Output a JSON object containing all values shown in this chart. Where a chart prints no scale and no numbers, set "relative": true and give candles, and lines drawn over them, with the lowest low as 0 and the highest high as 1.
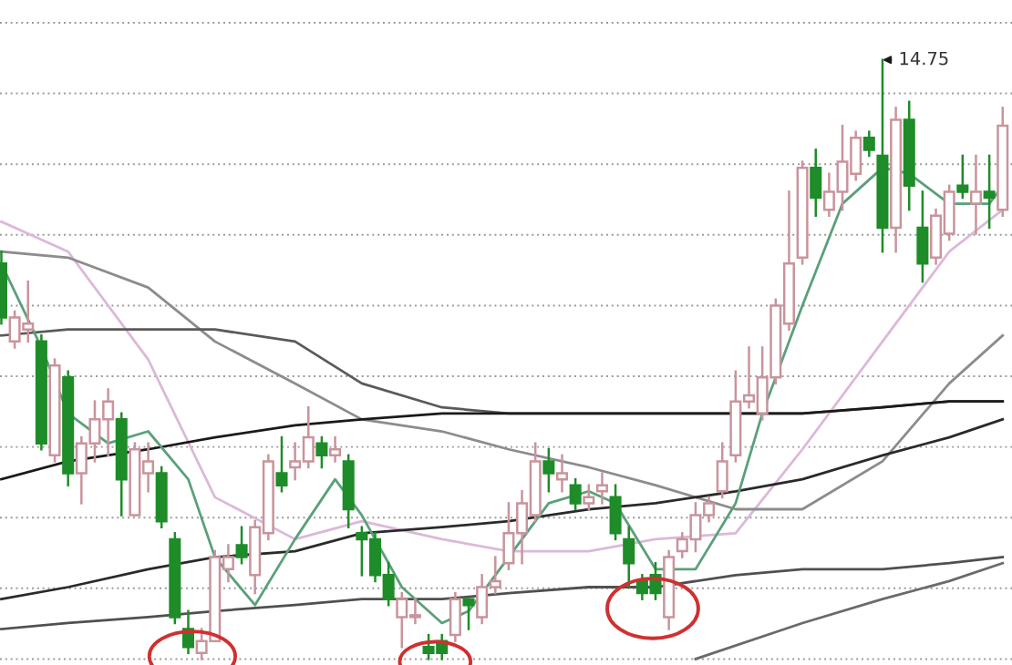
{
  "chart_data": {
    "type": "candlestick",
    "relative": true,
    "grid": "y",
    "categories": [
      null,
      null,
      null,
      null,
      null,
      null,
      null,
      null,
      null,
      null,
      null,
      null,
      null,
      null,
      null,
      null,
      null,
      null,
      null,
      null,
      null,
      null,
      null,
      null,
      null,
      null,
      null,
      null,
      null,
      null,
      null,
      null,
      null,
      null,
      null,
      null,
      null,
      null,
      null,
      null,
      null,
      null,
      null,
      null,
      null,
      null,
      null,
      null,
      null,
      null,
      null,
      null,
      null,
      null,
      null,
      null,
      null,
      null,
      null,
      null,
      null,
      null,
      null,
      null,
      null,
      null,
      null,
      null,
      null,
      null,
      null,
      null,
      null,
      null,
      null,
      null
    ],
    "ohlc": [
      [
        0.66,
        0.68,
        0.56,
        0.57
      ],
      [
        0.53,
        0.58,
        0.52,
        0.57
      ],
      [
        0.55,
        0.63,
        0.53,
        0.56
      ],
      [
        0.53,
        0.54,
        0.35,
        0.36
      ],
      [
        0.34,
        0.5,
        0.33,
        0.49
      ],
      [
        0.47,
        0.48,
        0.29,
        0.31
      ],
      [
        0.31,
        0.37,
        0.26,
        0.36
      ],
      [
        0.36,
        0.43,
        0.33,
        0.4
      ],
      [
        0.4,
        0.45,
        0.34,
        0.43
      ],
      [
        0.4,
        0.41,
        0.24,
        0.3
      ],
      [
        0.24,
        0.36,
        0.24,
        0.35
      ],
      [
        0.31,
        0.36,
        0.28,
        0.33
      ],
      [
        0.31,
        0.32,
        0.22,
        0.23
      ],
      [
        0.2,
        0.21,
        0.06,
        0.07
      ],
      [
        0.05,
        0.08,
        0.01,
        0.02
      ],
      [
        0.01,
        0.05,
        0,
        0.03
      ],
      [
        0.03,
        0.18,
        0.03,
        0.17
      ],
      [
        0.15,
        0.19,
        0.13,
        0.17
      ],
      [
        0.19,
        0.22,
        0.16,
        0.17
      ],
      [
        0.14,
        0.23,
        0.11,
        0.22
      ],
      [
        0.21,
        0.34,
        0.2,
        0.33
      ],
      [
        0.31,
        0.37,
        0.28,
        0.29
      ],
      [
        0.32,
        0.36,
        0.3,
        0.33
      ],
      [
        0.33,
        0.42,
        0.32,
        0.37
      ],
      [
        0.36,
        0.37,
        0.32,
        0.34
      ],
      [
        0.34,
        0.37,
        0.33,
        0.35
      ],
      [
        0.33,
        0.34,
        0.22,
        0.25
      ],
      [
        0.21,
        0.22,
        0.14,
        0.2
      ],
      [
        0.2,
        0.21,
        0.13,
        0.14
      ],
      [
        0.14,
        0.16,
        0.09,
        0.1
      ],
      [
        0.07,
        0.11,
        0.02,
        0.1
      ],
      [
        0.07,
        0.1,
        0.06,
        0.07
      ],
      [
        0.02,
        0.04,
        0,
        0.01
      ],
      [
        0.03,
        0.04,
        0,
        0.01
      ],
      [
        0.04,
        0.11,
        0.03,
        0.1
      ],
      [
        0.1,
        0.1,
        0.05,
        0.09
      ],
      [
        0.07,
        0.14,
        0.06,
        0.12
      ],
      [
        0.12,
        0.17,
        0.11,
        0.13
      ],
      [
        0.16,
        0.26,
        0.15,
        0.21
      ],
      [
        0.21,
        0.28,
        0.16,
        0.26
      ],
      [
        0.24,
        0.36,
        0.23,
        0.33
      ],
      [
        0.33,
        0.35,
        0.28,
        0.31
      ],
      [
        0.3,
        0.34,
        0.28,
        0.31
      ],
      [
        0.29,
        0.3,
        0.25,
        0.26
      ],
      [
        0.26,
        0.29,
        0.25,
        0.27
      ],
      [
        0.28,
        0.31,
        0.26,
        0.29
      ],
      [
        0.27,
        0.29,
        0.2,
        0.21
      ],
      [
        0.2,
        0.22,
        0.12,
        0.16
      ],
      [
        0.13,
        0.14,
        0.1,
        0.11
      ],
      [
        0.14,
        0.16,
        0.1,
        0.11
      ],
      [
        0.07,
        0.18,
        0.05,
        0.17
      ],
      [
        0.18,
        0.21,
        0.17,
        0.2
      ],
      [
        0.2,
        0.26,
        0.18,
        0.24
      ],
      [
        0.24,
        0.27,
        0.23,
        0.26
      ],
      [
        0.28,
        0.36,
        0.27,
        0.33
      ],
      [
        0.34,
        0.48,
        0.33,
        0.43
      ],
      [
        0.43,
        0.52,
        0.42,
        0.44
      ],
      [
        0.41,
        0.52,
        0.4,
        0.47
      ],
      [
        0.47,
        0.6,
        0.46,
        0.59
      ],
      [
        0.56,
        0.78,
        0.55,
        0.66
      ],
      [
        0.67,
        0.83,
        0.66,
        0.82
      ],
      [
        0.82,
        0.85,
        0.74,
        0.77
      ],
      [
        0.75,
        0.81,
        0.74,
        0.78
      ],
      [
        0.78,
        0.89,
        0.75,
        0.83
      ],
      [
        0.81,
        0.88,
        0.8,
        0.87
      ],
      [
        0.87,
        0.88,
        0.84,
        0.85
      ],
      [
        0.84,
        1,
        0.68,
        0.72
      ],
      [
        0.72,
        0.92,
        0.68,
        0.9
      ],
      [
        0.9,
        0.93,
        0.75,
        0.79
      ],
      [
        0.72,
        0.78,
        0.63,
        0.66
      ],
      [
        0.67,
        0.75,
        0.66,
        0.74
      ],
      [
        0.71,
        0.79,
        0.7,
        0.78
      ],
      [
        0.79,
        0.84,
        0.77,
        0.78
      ],
      [
        0.76,
        0.84,
        0.71,
        0.78
      ],
      [
        0.78,
        0.84,
        0.72,
        0.77
      ],
      [
        0.75,
        0.92,
        0.74,
        0.89
      ]
    ],
    "colors": [
      "#1e8c28",
      "#c8949c",
      "#c8949c",
      "#1e8c28",
      "#c8949c",
      "#1e8c28",
      "#c8949c",
      "#c8949c",
      "#c8949c",
      "#1e8c28",
      "#c8949c",
      "#c8949c",
      "#1e8c28",
      "#1e8c28",
      "#1e8c28",
      "#c8949c",
      "#c8949c",
      "#c8949c",
      "#1e8c28",
      "#c8949c",
      "#c8949c",
      "#1e8c28",
      "#c8949c",
      "#c8949c",
      "#1e8c28",
      "#c8949c",
      "#1e8c28",
      "#1e8c28",
      "#1e8c28",
      "#1e8c28",
      "#c8949c",
      "#c8949c",
      "#1e8c28",
      "#1e8c28",
      "#c8949c",
      "#1e8c28",
      "#c8949c",
      "#c8949c",
      "#c8949c",
      "#c8949c",
      "#c8949c",
      "#1e8c28",
      "#c8949c",
      "#1e8c28",
      "#c8949c",
      "#c8949c",
      "#1e8c28",
      "#1e8c28",
      "#1e8c28",
      "#1e8c28",
      "#c8949c",
      "#c8949c",
      "#c8949c",
      "#c8949c",
      "#c8949c",
      "#c8949c",
      "#c8949c",
      "#c8949c",
      "#c8949c",
      "#c8949c",
      "#c8949c",
      "#1e8c28",
      "#c8949c",
      "#c8949c",
      "#c8949c",
      "#1e8c28",
      "#1e8c28",
      "#c8949c",
      "#1e8c28",
      "#1e8c28",
      "#c8949c",
      "#c8949c",
      "#1e8c28",
      "#c8949c",
      "#1e8c28",
      "#c8949c"
    ],
    "series": [
      {
        "type": "line",
        "color": "#dcb8d8",
        "values": [
          0.73,
          null,
          null,
          null,
          null,
          0.68,
          null,
          null,
          null,
          null,
          null,
          0.5,
          null,
          null,
          null,
          null,
          0.27,
          null,
          null,
          null,
          null,
          null,
          0.2,
          null,
          null,
          null,
          null,
          0.23,
          null,
          null,
          null,
          null,
          null,
          0.2,
          null,
          null,
          null,
          null,
          0.18,
          null,
          null,
          null,
          null,
          null,
          0.18,
          null,
          null,
          null,
          null,
          0.2,
          null,
          null,
          null,
          null,
          null,
          0.21,
          null,
          null,
          null,
          null,
          0.35,
          null,
          null,
          null,
          null,
          null,
          0.53,
          null,
          null,
          null,
          null,
          0.68,
          null,
          null,
          null,
          0.75
        ]
      },
      {
        "type": "line",
        "color": "#8c8c8c",
        "values": [
          0.68,
          null,
          null,
          null,
          null,
          0.67,
          null,
          null,
          null,
          null,
          null,
          0.62,
          null,
          null,
          null,
          null,
          0.53,
          null,
          null,
          null,
          null,
          null,
          0.46,
          null,
          null,
          null,
          null,
          0.4,
          null,
          null,
          null,
          null,
          null,
          0.38,
          null,
          null,
          null,
          null,
          0.35,
          null,
          null,
          null,
          null,
          null,
          0.32,
          null,
          null,
          null,
          null,
          0.29,
          null,
          null,
          null,
          null,
          null,
          0.25,
          null,
          null,
          null,
          null,
          0.25,
          null,
          null,
          null,
          null,
          null,
          0.33,
          null,
          null,
          null,
          null,
          0.46,
          null,
          null,
          null,
          0.54
        ]
      },
      {
        "type": "line",
        "color": "#5a5a5a",
        "values": [
          0.54,
          null,
          null,
          null,
          null,
          0.55,
          null,
          null,
          null,
          null,
          null,
          0.55,
          null,
          null,
          null,
          null,
          0.55,
          null,
          null,
          null,
          null,
          null,
          0.53,
          null,
          null,
          null,
          null,
          0.46,
          null,
          null,
          null,
          null,
          null,
          0.42,
          null,
          null,
          null,
          null,
          0.41,
          null,
          null,
          null,
          null,
          null,
          0.41,
          null,
          null,
          null,
          null,
          0.41,
          null,
          null,
          null,
          null,
          null,
          0.41,
          null,
          null,
          null,
          null,
          0.41,
          null,
          null,
          null,
          null,
          null,
          0.42,
          null,
          null,
          null,
          null,
          0.43,
          null,
          null,
          null,
          0.43
        ]
      },
      {
        "type": "line",
        "color": "#1a1a1a",
        "values": [
          0.3,
          null,
          null,
          null,
          null,
          0.33,
          null,
          null,
          null,
          null,
          null,
          0.35,
          null,
          null,
          null,
          null,
          0.37,
          null,
          null,
          null,
          null,
          null,
          0.39,
          null,
          null,
          null,
          null,
          0.4,
          null,
          null,
          null,
          null,
          null,
          0.41,
          null,
          null,
          null,
          null,
          0.41,
          null,
          null,
          null,
          null,
          null,
          0.41,
          null,
          null,
          null,
          null,
          0.41,
          null,
          null,
          null,
          null,
          null,
          0.41,
          null,
          null,
          null,
          null,
          0.41,
          null,
          null,
          null,
          null,
          null,
          0.42,
          null,
          null,
          null,
          null,
          0.43,
          null,
          null,
          null,
          0.43
        ]
      },
      {
        "type": "line",
        "color": "#2a2a2a",
        "values": [
          0.1,
          null,
          null,
          null,
          null,
          0.12,
          null,
          null,
          null,
          null,
          null,
          0.15,
          null,
          null,
          null,
          null,
          0.17,
          null,
          null,
          null,
          null,
          null,
          0.18,
          null,
          null,
          null,
          null,
          0.21,
          null,
          null,
          null,
          null,
          null,
          0.22,
          null,
          null,
          null,
          null,
          0.23,
          null,
          null,
          null,
          null,
          null,
          0.25,
          null,
          null,
          null,
          null,
          0.26,
          null,
          null,
          null,
          null,
          null,
          0.28,
          null,
          null,
          null,
          null,
          0.3,
          null,
          null,
          null,
          null,
          null,
          0.34,
          null,
          null,
          null,
          null,
          0.37,
          null,
          null,
          null,
          0.4
        ]
      },
      {
        "type": "line",
        "color": "#505050",
        "values": [
          0.05,
          null,
          null,
          null,
          null,
          0.06,
          null,
          null,
          null,
          null,
          null,
          0.07,
          null,
          null,
          null,
          null,
          0.08,
          null,
          null,
          null,
          null,
          null,
          0.09,
          null,
          null,
          null,
          null,
          0.1,
          null,
          null,
          null,
          null,
          null,
          0.1,
          null,
          null,
          null,
          null,
          0.11,
          null,
          null,
          null,
          null,
          null,
          0.12,
          null,
          null,
          null,
          null,
          0.12,
          null,
          null,
          null,
          null,
          null,
          0.14,
          null,
          null,
          null,
          null,
          0.15,
          null,
          null,
          null,
          null,
          null,
          0.15,
          null,
          null,
          null,
          null,
          0.16,
          null,
          null,
          null,
          0.17
        ]
      },
      {
        "type": "line",
        "color": "#6a6a6a",
        "values": [
          null,
          null,
          null,
          null,
          null,
          null,
          null,
          null,
          null,
          null,
          null,
          null,
          null,
          null,
          null,
          null,
          null,
          null,
          null,
          null,
          null,
          null,
          null,
          null,
          null,
          null,
          null,
          null,
          null,
          null,
          null,
          null,
          null,
          null,
          null,
          null,
          null,
          null,
          null,
          null,
          null,
          null,
          null,
          null,
          null,
          null,
          null,
          null,
          null,
          null,
          null,
          null,
          0,
          null,
          null,
          null,
          null,
          null,
          null,
          null,
          0.06,
          null,
          null,
          null,
          null,
          null,
          0.1,
          null,
          null,
          null,
          null,
          0.13,
          null,
          null,
          null,
          0.16
        ]
      },
      {
        "type": "line",
        "color": "#5aa07a",
        "values": [
          0.66,
          null,
          null,
          0.52,
          null,
          0.41,
          null,
          null,
          0.36,
          null,
          null,
          0.38,
          null,
          null,
          0.3,
          null,
          0.17,
          null,
          null,
          0.09,
          null,
          null,
          0.2,
          null,
          null,
          0.3,
          null,
          0.24,
          null,
          null,
          0.12,
          null,
          null,
          0.06,
          null,
          0.08,
          null,
          null,
          0.17,
          null,
          null,
          0.26,
          null,
          null,
          0.28,
          null,
          0.26,
          null,
          null,
          0.15,
          null,
          null,
          0.15,
          null,
          null,
          0.26,
          null,
          0.41,
          null,
          null,
          0.59,
          null,
          null,
          0.76,
          null,
          null,
          0.82,
          null,
          0.81,
          null,
          null,
          0.76,
          null,
          null,
          0.76,
          0.79
        ]
      }
    ],
    "annotations": [
      "14.75"
    ]
  }
}
